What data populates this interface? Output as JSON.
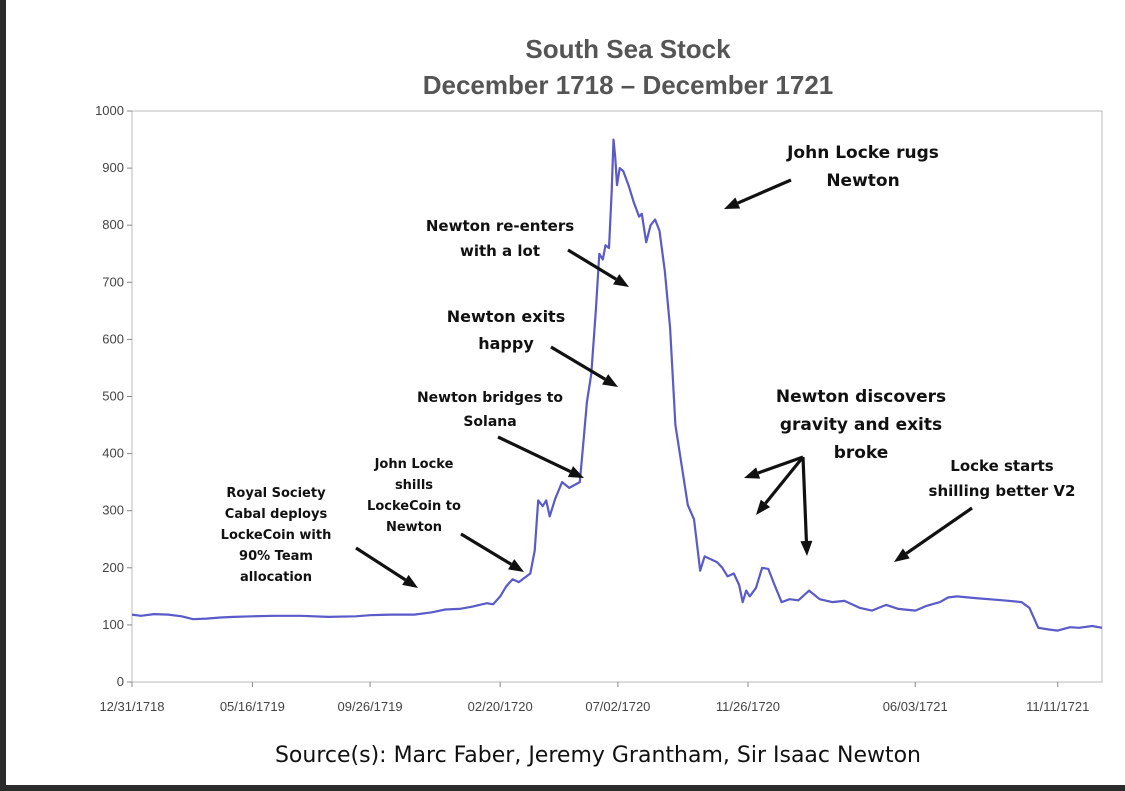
{
  "chart_data": {
    "type": "line",
    "title": "South Sea Stock",
    "subtitle": "December 1718 – December 1721",
    "xlabel": "",
    "ylabel": "",
    "ylim": [
      0,
      1000
    ],
    "yticks": [
      0,
      100,
      200,
      300,
      400,
      500,
      600,
      700,
      800,
      900,
      1000
    ],
    "xlim": [
      "1718-12-31",
      "1721-12-31"
    ],
    "xticks": [
      "12/31/1718",
      "05/16/1719",
      "09/26/1719",
      "02/20/1720",
      "07/02/1720",
      "11/26/1720",
      "06/03/1721",
      "11/11/1721"
    ],
    "xtick_dates": [
      "1718-12-31",
      "1719-05-16",
      "1719-09-26",
      "1720-02-20",
      "1720-07-02",
      "1720-11-26",
      "1721-06-03",
      "1721-11-11"
    ],
    "grid": false,
    "legend": "none",
    "line_color": "#5a5ac8",
    "series": [
      {
        "points": [
          [
            "1718-12-31",
            118
          ],
          [
            "1719-01-10",
            116
          ],
          [
            "1719-01-25",
            119
          ],
          [
            "1719-02-10",
            118
          ],
          [
            "1719-02-25",
            115
          ],
          [
            "1719-03-10",
            110
          ],
          [
            "1719-03-25",
            111
          ],
          [
            "1719-04-10",
            113
          ],
          [
            "1719-04-25",
            114
          ],
          [
            "1719-05-16",
            115
          ],
          [
            "1719-06-10",
            116
          ],
          [
            "1719-07-10",
            116
          ],
          [
            "1719-08-10",
            114
          ],
          [
            "1719-09-10",
            115
          ],
          [
            "1719-09-26",
            117
          ],
          [
            "1719-10-20",
            118
          ],
          [
            "1719-11-15",
            118
          ],
          [
            "1719-12-05",
            122
          ],
          [
            "1719-12-20",
            127
          ],
          [
            "1720-01-05",
            128
          ],
          [
            "1720-01-20",
            132
          ],
          [
            "1720-02-05",
            138
          ],
          [
            "1720-02-12",
            136
          ],
          [
            "1720-02-20",
            150
          ],
          [
            "1720-02-27",
            168
          ],
          [
            "1720-03-05",
            180
          ],
          [
            "1720-03-12",
            175
          ],
          [
            "1720-03-18",
            182
          ],
          [
            "1720-03-25",
            190
          ],
          [
            "1720-03-30",
            230
          ],
          [
            "1720-04-03",
            318
          ],
          [
            "1720-04-08",
            308
          ],
          [
            "1720-04-12",
            318
          ],
          [
            "1720-04-16",
            290
          ],
          [
            "1720-04-22",
            320
          ],
          [
            "1720-04-30",
            350
          ],
          [
            "1720-05-08",
            340
          ],
          [
            "1720-05-14",
            345
          ],
          [
            "1720-05-20",
            350
          ],
          [
            "1720-05-24",
            420
          ],
          [
            "1720-05-28",
            490
          ],
          [
            "1720-06-02",
            540
          ],
          [
            "1720-06-07",
            650
          ],
          [
            "1720-06-11",
            750
          ],
          [
            "1720-06-15",
            740
          ],
          [
            "1720-06-18",
            765
          ],
          [
            "1720-06-22",
            760
          ],
          [
            "1720-06-25",
            860
          ],
          [
            "1720-06-27",
            950
          ],
          [
            "1720-06-29",
            920
          ],
          [
            "1720-07-01",
            870
          ],
          [
            "1720-07-04",
            900
          ],
          [
            "1720-07-08",
            895
          ],
          [
            "1720-07-14",
            870
          ],
          [
            "1720-07-20",
            840
          ],
          [
            "1720-07-26",
            815
          ],
          [
            "1720-07-29",
            820
          ],
          [
            "1720-08-03",
            770
          ],
          [
            "1720-08-08",
            800
          ],
          [
            "1720-08-13",
            810
          ],
          [
            "1720-08-18",
            790
          ],
          [
            "1720-08-24",
            720
          ],
          [
            "1720-08-30",
            620
          ],
          [
            "1720-09-05",
            450
          ],
          [
            "1720-09-12",
            380
          ],
          [
            "1720-09-19",
            310
          ],
          [
            "1720-09-26",
            285
          ],
          [
            "1720-10-03",
            195
          ],
          [
            "1720-10-08",
            220
          ],
          [
            "1720-10-15",
            215
          ],
          [
            "1720-10-22",
            210
          ],
          [
            "1720-10-28",
            200
          ],
          [
            "1720-11-03",
            185
          ],
          [
            "1720-11-10",
            190
          ],
          [
            "1720-11-16",
            170
          ],
          [
            "1720-11-20",
            140
          ],
          [
            "1720-11-24",
            160
          ],
          [
            "1720-11-28",
            150
          ],
          [
            "1720-12-05",
            165
          ],
          [
            "1720-12-12",
            200
          ],
          [
            "1720-12-19",
            198
          ],
          [
            "1720-12-26",
            170
          ],
          [
            "1721-01-03",
            140
          ],
          [
            "1721-01-12",
            145
          ],
          [
            "1721-01-22",
            143
          ],
          [
            "1721-02-03",
            160
          ],
          [
            "1721-02-15",
            145
          ],
          [
            "1721-03-01",
            140
          ],
          [
            "1721-03-15",
            142
          ],
          [
            "1721-04-01",
            130
          ],
          [
            "1721-04-15",
            125
          ],
          [
            "1721-05-01",
            135
          ],
          [
            "1721-05-15",
            128
          ],
          [
            "1721-06-03",
            125
          ],
          [
            "1721-06-15",
            133
          ],
          [
            "1721-07-01",
            140
          ],
          [
            "1721-07-10",
            148
          ],
          [
            "1721-07-20",
            150
          ],
          [
            "1721-08-10",
            147
          ],
          [
            "1721-09-10",
            143
          ],
          [
            "1721-10-01",
            140
          ],
          [
            "1721-10-10",
            130
          ],
          [
            "1721-10-20",
            95
          ],
          [
            "1721-11-01",
            92
          ],
          [
            "1721-11-11",
            90
          ],
          [
            "1721-11-25",
            96
          ],
          [
            "1721-12-05",
            95
          ],
          [
            "1721-12-20",
            98
          ],
          [
            "1721-12-31",
            95
          ]
        ]
      }
    ]
  },
  "annotations": [
    {
      "lines": [
        "Royal Society",
        "Cabal deploys",
        "LockeCoin with",
        "90% Team",
        "allocation"
      ]
    },
    {
      "lines": [
        "John Locke",
        "shills",
        "LockeCoin to",
        "Newton"
      ]
    },
    {
      "lines": [
        "Newton bridges to",
        "Solana"
      ]
    },
    {
      "lines": [
        "Newton exits",
        "happy"
      ]
    },
    {
      "lines": [
        "Newton re-enters",
        "with a lot"
      ]
    },
    {
      "lines": [
        "John Locke rugs",
        "Newton"
      ]
    },
    {
      "lines": [
        "Newton discovers",
        "gravity and exits",
        "broke"
      ]
    },
    {
      "lines": [
        "Locke starts",
        "shilling better V2"
      ]
    }
  ],
  "source": "Source(s): Marc Faber, Jeremy Grantham, Sir Isaac Newton"
}
